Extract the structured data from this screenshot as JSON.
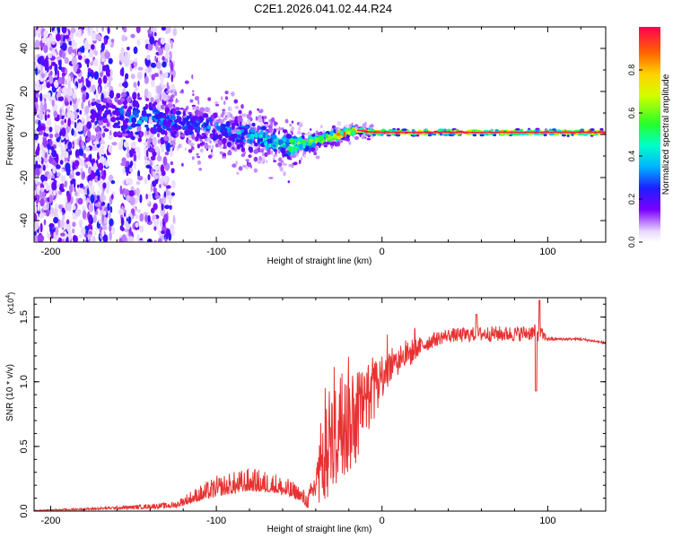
{
  "title": "C2E1.2026.041.02.44.R24",
  "chart_data": [
    {
      "type": "heatmap",
      "title": "C2E1.2026.041.02.44.R24",
      "xlabel": "Height of straight line (km)",
      "ylabel": "Frequency (Hz)",
      "xlim": [
        -210,
        135
      ],
      "ylim": [
        -50,
        50
      ],
      "x_ticks": [
        {
          "value": -200,
          "label": "-200"
        },
        {
          "value": -100,
          "label": "-100"
        },
        {
          "value": 0,
          "label": "0"
        },
        {
          "value": 100,
          "label": "100"
        }
      ],
      "y_ticks": [
        {
          "value": -40,
          "label": "-40"
        },
        {
          "value": -20,
          "label": "-20"
        },
        {
          "value": 0,
          "label": "0"
        },
        {
          "value": 20,
          "label": "20"
        },
        {
          "value": 40,
          "label": "40"
        }
      ],
      "grid": false,
      "colorbar": {
        "label": "Normalized spectral amplitude",
        "range": [
          0,
          1
        ],
        "ticks": [
          {
            "value": 0.0,
            "label": "0.0"
          },
          {
            "value": 0.2,
            "label": "0.2"
          },
          {
            "value": 0.4,
            "label": "0.4"
          },
          {
            "value": 0.6,
            "label": "0.6"
          },
          {
            "value": 0.8,
            "label": "0.8"
          }
        ],
        "colormap": "rainbow"
      },
      "ridge": {
        "description": "frequency of spectral peak vs height",
        "x": [
          -170,
          -150,
          -130,
          -110,
          -90,
          -70,
          -55,
          -45,
          -35,
          -25,
          -15,
          -5,
          5,
          20,
          40,
          60,
          80,
          100,
          120,
          135
        ],
        "freq": [
          9,
          8,
          6,
          4,
          1,
          -2,
          -5,
          -4,
          -2,
          0,
          2,
          1,
          1,
          1,
          1,
          1,
          1,
          1,
          1,
          1
        ],
        "spread": [
          16,
          14,
          11,
          10,
          9,
          8,
          7,
          4,
          3,
          2.5,
          2,
          1.5,
          1.5,
          1.5,
          1.5,
          1.5,
          1.5,
          1.5,
          1.5,
          1.5
        ],
        "peak_amplitude": [
          0.2,
          0.35,
          0.3,
          0.3,
          0.35,
          0.45,
          0.55,
          0.65,
          0.7,
          0.8,
          0.9,
          0.9,
          0.95,
          0.95,
          0.95,
          0.95,
          0.95,
          0.95,
          0.95,
          0.95
        ]
      },
      "noise_region": {
        "x_range": [
          -210,
          -125
        ],
        "freq_range": [
          -50,
          50
        ],
        "gaps": [
          [
            -162,
            -158
          ],
          [
            -145,
            -143
          ]
        ]
      }
    },
    {
      "type": "line",
      "title": "",
      "xlabel": "Height of straight line (km)",
      "ylabel": "SNR (10 * v/v)",
      "y_exponent": "(x10",
      "y_exponent_power": "4",
      "y_exponent_close": ")",
      "xlim": [
        -210,
        135
      ],
      "ylim": [
        0,
        16500
      ],
      "x_ticks": [
        {
          "value": -200,
          "label": "-200"
        },
        {
          "value": -100,
          "label": "-100"
        },
        {
          "value": 0,
          "label": "0"
        },
        {
          "value": 100,
          "label": "100"
        }
      ],
      "y_ticks": [
        {
          "value": 0,
          "label": "0.0"
        },
        {
          "value": 5000,
          "label": "0.5"
        },
        {
          "value": 10000,
          "label": "1.0"
        },
        {
          "value": 15000,
          "label": "1.5"
        }
      ],
      "grid": false,
      "color": "#e83232",
      "series": [
        {
          "name": "SNR",
          "envelope_x": [
            -210,
            -180,
            -150,
            -125,
            -115,
            -100,
            -80,
            -65,
            -50,
            -45,
            -40,
            -35,
            -30,
            -25,
            -20,
            -15,
            -10,
            -5,
            0,
            10,
            20,
            30,
            40,
            50,
            60,
            70,
            80,
            90,
            95,
            100,
            110,
            120,
            135
          ],
          "envelope_y": [
            50,
            150,
            300,
            450,
            1000,
            1700,
            2200,
            2000,
            1300,
            700,
            2000,
            3500,
            5000,
            6000,
            6500,
            7500,
            8500,
            9000,
            10500,
            11500,
            12500,
            13200,
            13600,
            13600,
            13700,
            13700,
            13700,
            13800,
            13800,
            13300,
            13300,
            13300,
            13000
          ],
          "noise_amplitude": [
            40,
            80,
            150,
            250,
            500,
            800,
            900,
            800,
            600,
            600,
            1500,
            2500,
            3000,
            3500,
            3500,
            3000,
            2500,
            2000,
            1500,
            1000,
            800,
            600,
            500,
            600,
            600,
            600,
            600,
            600,
            700,
            150,
            100,
            100,
            100
          ],
          "features": [
            {
              "x": 93,
              "y": 9300,
              "note": "sharp dip"
            },
            {
              "x": 95,
              "y": 16300,
              "note": "sharp spike"
            },
            {
              "x": 57,
              "y": 15200,
              "note": "local peak"
            }
          ]
        }
      ]
    }
  ]
}
